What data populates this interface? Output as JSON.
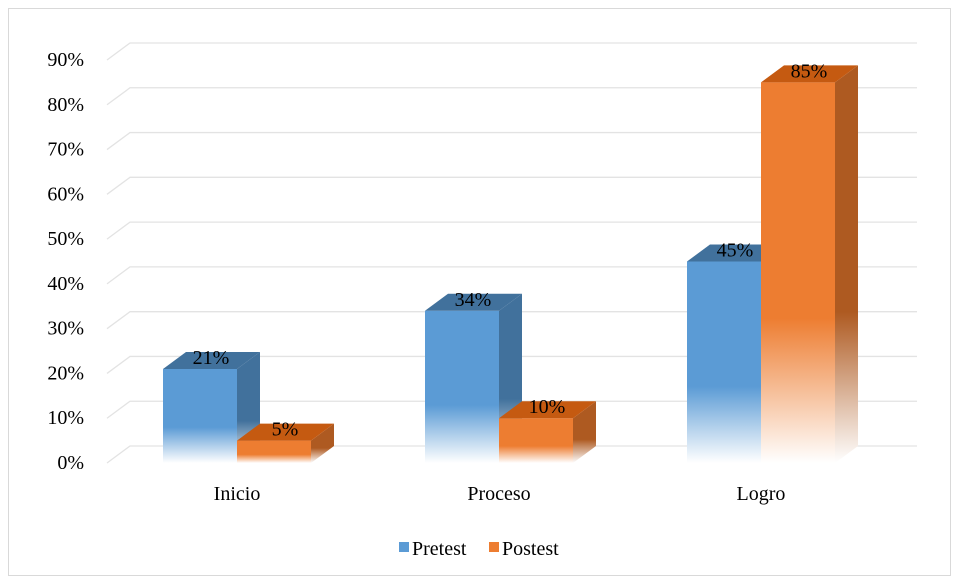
{
  "chart_data": {
    "type": "bar",
    "categories": [
      "Inicio",
      "Proceso",
      "Logro"
    ],
    "series": [
      {
        "name": "Pretest",
        "values": [
          21,
          34,
          45
        ],
        "labels": [
          "21%",
          "34%",
          "45%"
        ],
        "color": "#5b9bd5"
      },
      {
        "name": "Postest",
        "values": [
          5,
          10,
          85
        ],
        "labels": [
          "5%",
          "10%",
          "85%"
        ],
        "color": "#ed7d31"
      }
    ],
    "ylim": [
      0,
      90
    ],
    "yticks": [
      "0%",
      "10%",
      "20%",
      "30%",
      "40%",
      "50%",
      "60%",
      "70%",
      "80%",
      "90%"
    ],
    "grid": true,
    "legend": "bottom",
    "style": "3d-clustered-column"
  }
}
